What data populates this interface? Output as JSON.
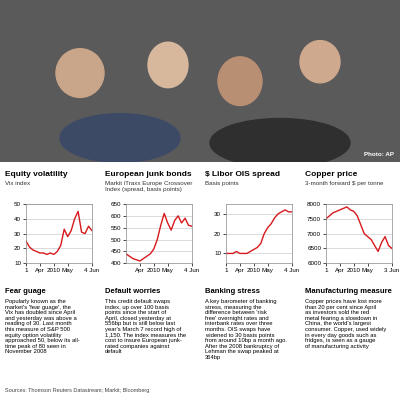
{
  "photo": {
    "credit": "Photo: AP"
  },
  "chart_data": [
    {
      "type": "line",
      "title": "Equity volatility",
      "subtitle": "Vix index",
      "categories": [
        "1",
        null,
        null,
        null,
        "Apr",
        null,
        null,
        null,
        "2010",
        null,
        null,
        null,
        "May",
        null,
        null,
        null,
        null,
        null,
        null,
        "4 Jun"
      ],
      "values": [
        25,
        21,
        19,
        18,
        17,
        17,
        16,
        17,
        16,
        18,
        22,
        33,
        28,
        32,
        40,
        45,
        31,
        30,
        35,
        32
      ],
      "color": "#d7191c",
      "ylim": [
        10,
        50
      ],
      "yticks": [
        10,
        20,
        30,
        40,
        50
      ],
      "grid": true,
      "annotations": [
        "Fear guage",
        "Popularly known as the market's 'fear guage', the Vix has doubled since April and yesterday was above a reading of 30. Last month this measure of S&P 500 equity option volatility approached 50, below its all-time peak of 80 seen in November 2008"
      ]
    },
    {
      "type": "line",
      "title": "European junk bonds",
      "subtitle": "Markit iTraxx Europe Crossover Index (spread, basis points)",
      "categories": [
        null,
        null,
        null,
        null,
        "Apr",
        null,
        null,
        null,
        "2010",
        null,
        null,
        null,
        "May",
        null,
        null,
        null,
        null,
        null,
        null,
        "4 Jun"
      ],
      "values": [
        440,
        430,
        420,
        415,
        410,
        420,
        430,
        440,
        460,
        500,
        560,
        610,
        570,
        540,
        580,
        600,
        570,
        590,
        560,
        556
      ],
      "color": "#d7191c",
      "ylim": [
        400,
        650
      ],
      "yticks": [
        400,
        450,
        500,
        550,
        600,
        650
      ],
      "grid": true,
      "annotations": [
        "Default worries",
        "This credit default swaps index, up over 100 basis points since the start of April, closed yesterday at 556bp but is still below last year's March 7 record high of 1,150. The index measures the cost to insure European junk-rated companies against default"
      ]
    },
    {
      "type": "line",
      "title": "$ Libor OIS spread",
      "subtitle": "Basis points",
      "categories": [
        "1",
        null,
        null,
        null,
        "Apr",
        null,
        null,
        null,
        "2010",
        null,
        null,
        null,
        "May",
        null,
        null,
        null,
        null,
        null,
        null,
        "4 Jun"
      ],
      "values": [
        10,
        10,
        10,
        11,
        10,
        10,
        10,
        11,
        12,
        13,
        15,
        20,
        23,
        25,
        28,
        30,
        31,
        32,
        31,
        31
      ],
      "color": "#d7191c",
      "ylim": [
        5,
        35
      ],
      "yticks": [
        10,
        20,
        30
      ],
      "grid": true,
      "annotations": [
        "Banking stress",
        "A key barometer of banking stress, measuring the difference between 'risk free' overnight rates and interbank rates over three months. OIS swaps have widened to 30 basis points from around 10bp a month ago. After the 2008 bankruptcy of Lehman the swap peaked at 364bp"
      ]
    },
    {
      "type": "line",
      "title": "Copper price",
      "subtitle": "3-month forward $ per tonne",
      "categories": [
        "1",
        null,
        null,
        null,
        "Apr",
        null,
        null,
        null,
        "2010",
        null,
        null,
        null,
        "May",
        null,
        null,
        null,
        null,
        null,
        null,
        "3 Jun"
      ],
      "values": [
        7500,
        7600,
        7700,
        7750,
        7800,
        7850,
        7900,
        7800,
        7750,
        7600,
        7300,
        7000,
        6900,
        6800,
        6600,
        6400,
        6700,
        6900,
        6600,
        6500
      ],
      "color": "#d7191c",
      "ylim": [
        6000,
        8000
      ],
      "yticks": [
        6000,
        6500,
        7000,
        7500,
        8000
      ],
      "grid": true,
      "annotations": [
        "Manufacturing measure",
        "Copper prices have lost more than 20 per cent since April as investors sold the red metal fearing a slowdown in China, the world's largest consumer. Copper, used widely in every day goods such as fridges, is seen as a gauge of manufacturing activity"
      ]
    }
  ],
  "footer": {
    "sources": "Sources: Thomson Reuters Datastream; Markit; Bloomberg"
  }
}
